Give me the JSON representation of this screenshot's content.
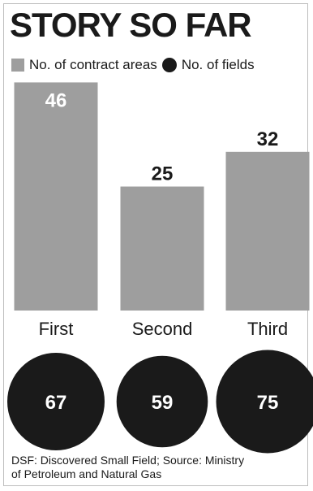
{
  "title": "STORY SO FAR",
  "legend": {
    "bars_label": "No. of contract areas",
    "circles_label": "No. of fields"
  },
  "chart_data": {
    "type": "bar",
    "categories": [
      "First",
      "Second",
      "Third"
    ],
    "series": [
      {
        "name": "No. of contract areas",
        "values": [
          46,
          25,
          32
        ]
      },
      {
        "name": "No. of fields",
        "values": [
          67,
          59,
          75
        ]
      }
    ],
    "colors": {
      "bars": "#9e9e9e",
      "circles": "#1a1a1a"
    }
  },
  "source_line1": "DSF: Discovered Small Field; Source: Ministry",
  "source_line2": "of Petroleum and Natural Gas"
}
